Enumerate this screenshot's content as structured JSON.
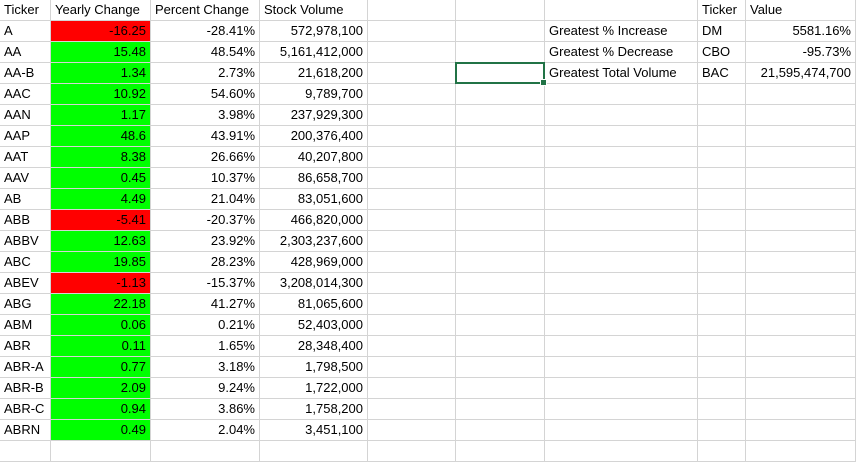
{
  "summary_table": {
    "headers": [
      "Ticker",
      "Yearly Change",
      "Percent Change",
      "Stock Volume"
    ],
    "rows": [
      {
        "ticker": "A",
        "yearly_change": "-16.25",
        "percent_change": "-28.41%",
        "stock_volume": "572,978,100",
        "change_color": "#ff0000"
      },
      {
        "ticker": "AA",
        "yearly_change": "15.48",
        "percent_change": "48.54%",
        "stock_volume": "5,161,412,000",
        "change_color": "#00ff00"
      },
      {
        "ticker": "AA-B",
        "yearly_change": "1.34",
        "percent_change": "2.73%",
        "stock_volume": "21,618,200",
        "change_color": "#00ff00"
      },
      {
        "ticker": "AAC",
        "yearly_change": "10.92",
        "percent_change": "54.60%",
        "stock_volume": "9,789,700",
        "change_color": "#00ff00"
      },
      {
        "ticker": "AAN",
        "yearly_change": "1.17",
        "percent_change": "3.98%",
        "stock_volume": "237,929,300",
        "change_color": "#00ff00"
      },
      {
        "ticker": "AAP",
        "yearly_change": "48.6",
        "percent_change": "43.91%",
        "stock_volume": "200,376,400",
        "change_color": "#00ff00"
      },
      {
        "ticker": "AAT",
        "yearly_change": "8.38",
        "percent_change": "26.66%",
        "stock_volume": "40,207,800",
        "change_color": "#00ff00"
      },
      {
        "ticker": "AAV",
        "yearly_change": "0.45",
        "percent_change": "10.37%",
        "stock_volume": "86,658,700",
        "change_color": "#00ff00"
      },
      {
        "ticker": "AB",
        "yearly_change": "4.49",
        "percent_change": "21.04%",
        "stock_volume": "83,051,600",
        "change_color": "#00ff00"
      },
      {
        "ticker": "ABB",
        "yearly_change": "-5.41",
        "percent_change": "-20.37%",
        "stock_volume": "466,820,000",
        "change_color": "#ff0000"
      },
      {
        "ticker": "ABBV",
        "yearly_change": "12.63",
        "percent_change": "23.92%",
        "stock_volume": "2,303,237,600",
        "change_color": "#00ff00"
      },
      {
        "ticker": "ABC",
        "yearly_change": "19.85",
        "percent_change": "28.23%",
        "stock_volume": "428,969,000",
        "change_color": "#00ff00"
      },
      {
        "ticker": "ABEV",
        "yearly_change": "-1.13",
        "percent_change": "-15.37%",
        "stock_volume": "3,208,014,300",
        "change_color": "#ff0000"
      },
      {
        "ticker": "ABG",
        "yearly_change": "22.18",
        "percent_change": "41.27%",
        "stock_volume": "81,065,600",
        "change_color": "#00ff00"
      },
      {
        "ticker": "ABM",
        "yearly_change": "0.06",
        "percent_change": "0.21%",
        "stock_volume": "52,403,000",
        "change_color": "#00ff00"
      },
      {
        "ticker": "ABR",
        "yearly_change": "0.11",
        "percent_change": "1.65%",
        "stock_volume": "28,348,400",
        "change_color": "#00ff00"
      },
      {
        "ticker": "ABR-A",
        "yearly_change": "0.77",
        "percent_change": "3.18%",
        "stock_volume": "1,798,500",
        "change_color": "#00ff00"
      },
      {
        "ticker": "ABR-B",
        "yearly_change": "2.09",
        "percent_change": "9.24%",
        "stock_volume": "1,722,000",
        "change_color": "#00ff00"
      },
      {
        "ticker": "ABR-C",
        "yearly_change": "0.94",
        "percent_change": "3.86%",
        "stock_volume": "1,758,200",
        "change_color": "#00ff00"
      },
      {
        "ticker": "ABRN",
        "yearly_change": "0.49",
        "percent_change": "2.04%",
        "stock_volume": "3,451,100",
        "change_color": "#00ff00"
      }
    ]
  },
  "greatest_table": {
    "headers": [
      "Ticker",
      "Value"
    ],
    "rows": [
      {
        "label": "Greatest % Increase",
        "ticker": "DM",
        "value": "5581.16%"
      },
      {
        "label": "Greatest % Decrease",
        "ticker": "CBO",
        "value": "-95.73%"
      },
      {
        "label": "Greatest Total Volume",
        "ticker": "BAC",
        "value": "21,595,474,700"
      }
    ]
  },
  "colors": {
    "positive": "#00ff00",
    "negative": "#ff0000",
    "selection": "#217346",
    "gridline": "#d4d4d4"
  }
}
